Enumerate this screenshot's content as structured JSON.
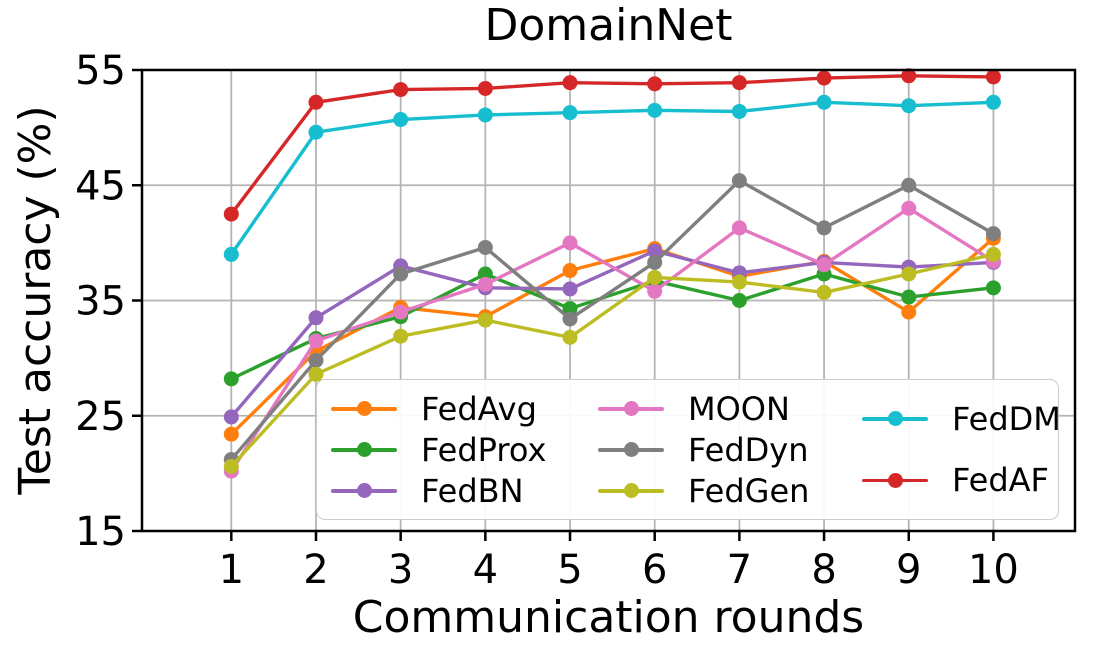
{
  "title": "DomainNet",
  "axes": {
    "x_label": "Communication rounds",
    "y_label": "Test accuracy (%)"
  },
  "chart_data": {
    "type": "line",
    "title": "DomainNet",
    "xlabel": "Communication rounds",
    "ylabel": "Test accuracy (%)",
    "x": [
      1,
      2,
      3,
      4,
      5,
      6,
      7,
      8,
      9,
      10
    ],
    "x_tick_labels": [
      "1",
      "2",
      "3",
      "4",
      "5",
      "6",
      "7",
      "8",
      "9",
      "10"
    ],
    "y_ticks": [
      15,
      25,
      35,
      45,
      55
    ],
    "ylim": [
      15,
      55
    ],
    "grid": true,
    "marker": "circle",
    "legend_position": "inside lower center, 3 columns",
    "legend_ncol": 3,
    "grid_color": "#b4b4b4",
    "spine_color": "#000000",
    "series": [
      {
        "name": "FedAvg",
        "color": "#ff7f0e",
        "values": [
          23.4,
          30.6,
          34.4,
          33.6,
          37.6,
          39.5,
          37.1,
          38.4,
          34.0,
          40.4
        ]
      },
      {
        "name": "FedProx",
        "color": "#2ca02c",
        "values": [
          28.2,
          31.7,
          33.6,
          37.3,
          34.3,
          36.7,
          35.0,
          37.3,
          35.3,
          36.1
        ]
      },
      {
        "name": "FedBN",
        "color": "#9467bd",
        "values": [
          24.9,
          33.5,
          38.0,
          36.1,
          36.0,
          39.3,
          37.4,
          38.3,
          37.9,
          38.3
        ]
      },
      {
        "name": "MOON",
        "color": "#e377c2",
        "values": [
          20.2,
          31.5,
          34.0,
          36.4,
          40.0,
          35.8,
          41.3,
          38.1,
          43.0,
          38.4
        ]
      },
      {
        "name": "FedDyn",
        "color": "#7f7f7f",
        "values": [
          21.2,
          29.8,
          37.3,
          39.6,
          33.4,
          38.3,
          45.4,
          41.3,
          45.0,
          40.8
        ]
      },
      {
        "name": "FedGen",
        "color": "#bcbd22",
        "values": [
          20.6,
          28.6,
          31.9,
          33.3,
          31.8,
          37.0,
          36.6,
          35.7,
          37.3,
          39.0
        ]
      },
      {
        "name": "FedDM",
        "color": "#17becf",
        "values": [
          39.0,
          49.6,
          50.7,
          51.1,
          51.3,
          51.5,
          51.4,
          52.2,
          51.9,
          52.2
        ]
      },
      {
        "name": "FedAF",
        "color": "#d62728",
        "values": [
          42.5,
          52.2,
          53.3,
          53.4,
          53.9,
          53.8,
          53.9,
          54.3,
          54.5,
          54.4
        ]
      }
    ]
  }
}
